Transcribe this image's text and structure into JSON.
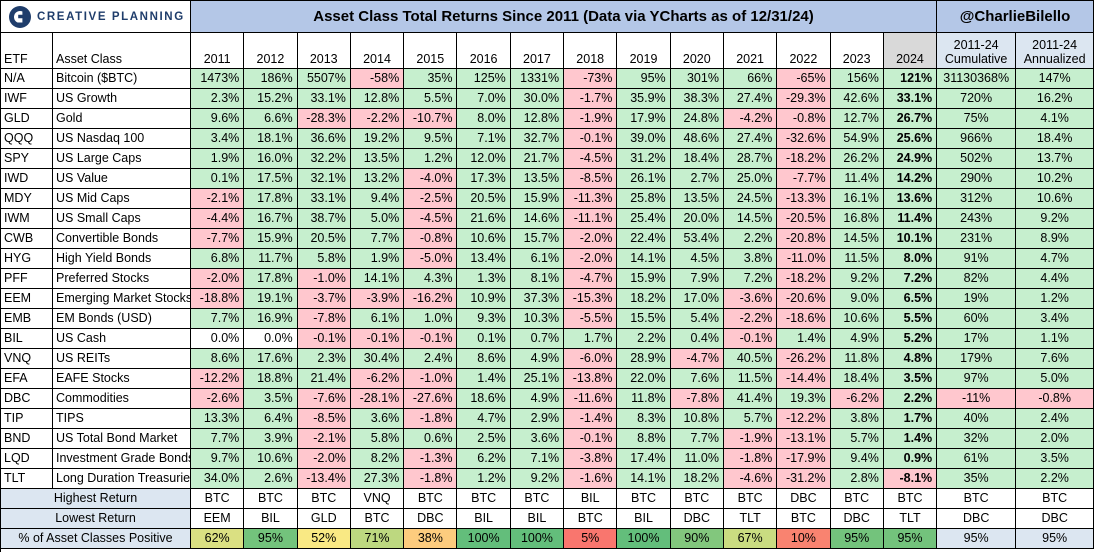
{
  "header": {
    "logo_text": "CREATIVE PLANNING",
    "title": "Asset Class Total Returns Since 2011 (Data via YCharts as of 12/31/24)",
    "handle": "@CharlieBilello"
  },
  "columns": {
    "etf": "ETF",
    "asset_class": "Asset Class",
    "years": [
      "2011",
      "2012",
      "2013",
      "2014",
      "2015",
      "2016",
      "2017",
      "2018",
      "2019",
      "2020",
      "2021",
      "2022",
      "2023",
      "2024"
    ],
    "cumulative": [
      "2011-24",
      "Cumulative"
    ],
    "annualized": [
      "2011-24",
      "Annualized"
    ]
  },
  "chart_data": {
    "type": "table",
    "title": "Asset Class Total Returns Since 2011 (Data via YCharts as of 12/31/24)",
    "rows": [
      {
        "etf": "N/A",
        "name": "Bitcoin ($BTC)",
        "values": [
          "1473%",
          "186%",
          "5507%",
          "-58%",
          "35%",
          "125%",
          "1331%",
          "-73%",
          "95%",
          "301%",
          "66%",
          "-65%",
          "156%",
          "121%"
        ],
        "cumulative": "31130368%",
        "annualized": "147%"
      },
      {
        "etf": "IWF",
        "name": "US Growth",
        "values": [
          "2.3%",
          "15.2%",
          "33.1%",
          "12.8%",
          "5.5%",
          "7.0%",
          "30.0%",
          "-1.7%",
          "35.9%",
          "38.3%",
          "27.4%",
          "-29.3%",
          "42.6%",
          "33.1%"
        ],
        "cumulative": "720%",
        "annualized": "16.2%"
      },
      {
        "etf": "GLD",
        "name": "Gold",
        "values": [
          "9.6%",
          "6.6%",
          "-28.3%",
          "-2.2%",
          "-10.7%",
          "8.0%",
          "12.8%",
          "-1.9%",
          "17.9%",
          "24.8%",
          "-4.2%",
          "-0.8%",
          "12.7%",
          "26.7%"
        ],
        "cumulative": "75%",
        "annualized": "4.1%"
      },
      {
        "etf": "QQQ",
        "name": "US Nasdaq 100",
        "values": [
          "3.4%",
          "18.1%",
          "36.6%",
          "19.2%",
          "9.5%",
          "7.1%",
          "32.7%",
          "-0.1%",
          "39.0%",
          "48.6%",
          "27.4%",
          "-32.6%",
          "54.9%",
          "25.6%"
        ],
        "cumulative": "966%",
        "annualized": "18.4%"
      },
      {
        "etf": "SPY",
        "name": "US Large Caps",
        "values": [
          "1.9%",
          "16.0%",
          "32.2%",
          "13.5%",
          "1.2%",
          "12.0%",
          "21.7%",
          "-4.5%",
          "31.2%",
          "18.4%",
          "28.7%",
          "-18.2%",
          "26.2%",
          "24.9%"
        ],
        "cumulative": "502%",
        "annualized": "13.7%"
      },
      {
        "etf": "IWD",
        "name": "US Value",
        "values": [
          "0.1%",
          "17.5%",
          "32.1%",
          "13.2%",
          "-4.0%",
          "17.3%",
          "13.5%",
          "-8.5%",
          "26.1%",
          "2.7%",
          "25.0%",
          "-7.7%",
          "11.4%",
          "14.2%"
        ],
        "cumulative": "290%",
        "annualized": "10.2%"
      },
      {
        "etf": "MDY",
        "name": "US Mid Caps",
        "values": [
          "-2.1%",
          "17.8%",
          "33.1%",
          "9.4%",
          "-2.5%",
          "20.5%",
          "15.9%",
          "-11.3%",
          "25.8%",
          "13.5%",
          "24.5%",
          "-13.3%",
          "16.1%",
          "13.6%"
        ],
        "cumulative": "312%",
        "annualized": "10.6%"
      },
      {
        "etf": "IWM",
        "name": "US Small Caps",
        "values": [
          "-4.4%",
          "16.7%",
          "38.7%",
          "5.0%",
          "-4.5%",
          "21.6%",
          "14.6%",
          "-11.1%",
          "25.4%",
          "20.0%",
          "14.5%",
          "-20.5%",
          "16.8%",
          "11.4%"
        ],
        "cumulative": "243%",
        "annualized": "9.2%"
      },
      {
        "etf": "CWB",
        "name": "Convertible Bonds",
        "values": [
          "-7.7%",
          "15.9%",
          "20.5%",
          "7.7%",
          "-0.8%",
          "10.6%",
          "15.7%",
          "-2.0%",
          "22.4%",
          "53.4%",
          "2.2%",
          "-20.8%",
          "14.5%",
          "10.1%"
        ],
        "cumulative": "231%",
        "annualized": "8.9%"
      },
      {
        "etf": "HYG",
        "name": "High Yield Bonds",
        "values": [
          "6.8%",
          "11.7%",
          "5.8%",
          "1.9%",
          "-5.0%",
          "13.4%",
          "6.1%",
          "-2.0%",
          "14.1%",
          "4.5%",
          "3.8%",
          "-11.0%",
          "11.5%",
          "8.0%"
        ],
        "cumulative": "91%",
        "annualized": "4.7%"
      },
      {
        "etf": "PFF",
        "name": "Preferred Stocks",
        "values": [
          "-2.0%",
          "17.8%",
          "-1.0%",
          "14.1%",
          "4.3%",
          "1.3%",
          "8.1%",
          "-4.7%",
          "15.9%",
          "7.9%",
          "7.2%",
          "-18.2%",
          "9.2%",
          "7.2%"
        ],
        "cumulative": "82%",
        "annualized": "4.4%"
      },
      {
        "etf": "EEM",
        "name": "Emerging Market Stocks",
        "values": [
          "-18.8%",
          "19.1%",
          "-3.7%",
          "-3.9%",
          "-16.2%",
          "10.9%",
          "37.3%",
          "-15.3%",
          "18.2%",
          "17.0%",
          "-3.6%",
          "-20.6%",
          "9.0%",
          "6.5%"
        ],
        "cumulative": "19%",
        "annualized": "1.2%"
      },
      {
        "etf": "EMB",
        "name": "EM Bonds (USD)",
        "values": [
          "7.7%",
          "16.9%",
          "-7.8%",
          "6.1%",
          "1.0%",
          "9.3%",
          "10.3%",
          "-5.5%",
          "15.5%",
          "5.4%",
          "-2.2%",
          "-18.6%",
          "10.6%",
          "5.5%"
        ],
        "cumulative": "60%",
        "annualized": "3.4%"
      },
      {
        "etf": "BIL",
        "name": "US Cash",
        "values": [
          "0.0%",
          "0.0%",
          "-0.1%",
          "-0.1%",
          "-0.1%",
          "0.1%",
          "0.7%",
          "1.7%",
          "2.2%",
          "0.4%",
          "-0.1%",
          "1.4%",
          "4.9%",
          "5.2%"
        ],
        "cumulative": "17%",
        "annualized": "1.1%"
      },
      {
        "etf": "VNQ",
        "name": "US REITs",
        "values": [
          "8.6%",
          "17.6%",
          "2.3%",
          "30.4%",
          "2.4%",
          "8.6%",
          "4.9%",
          "-6.0%",
          "28.9%",
          "-4.7%",
          "40.5%",
          "-26.2%",
          "11.8%",
          "4.8%"
        ],
        "cumulative": "179%",
        "annualized": "7.6%"
      },
      {
        "etf": "EFA",
        "name": "EAFE Stocks",
        "values": [
          "-12.2%",
          "18.8%",
          "21.4%",
          "-6.2%",
          "-1.0%",
          "1.4%",
          "25.1%",
          "-13.8%",
          "22.0%",
          "7.6%",
          "11.5%",
          "-14.4%",
          "18.4%",
          "3.5%"
        ],
        "cumulative": "97%",
        "annualized": "5.0%"
      },
      {
        "etf": "DBC",
        "name": "Commodities",
        "values": [
          "-2.6%",
          "3.5%",
          "-7.6%",
          "-28.1%",
          "-27.6%",
          "18.6%",
          "4.9%",
          "-11.6%",
          "11.8%",
          "-7.8%",
          "41.4%",
          "19.3%",
          "-6.2%",
          "2.2%"
        ],
        "cumulative": "-11%",
        "annualized": "-0.8%"
      },
      {
        "etf": "TIP",
        "name": "TIPS",
        "values": [
          "13.3%",
          "6.4%",
          "-8.5%",
          "3.6%",
          "-1.8%",
          "4.7%",
          "2.9%",
          "-1.4%",
          "8.3%",
          "10.8%",
          "5.7%",
          "-12.2%",
          "3.8%",
          "1.7%"
        ],
        "cumulative": "40%",
        "annualized": "2.4%"
      },
      {
        "etf": "BND",
        "name": "US Total Bond Market",
        "values": [
          "7.7%",
          "3.9%",
          "-2.1%",
          "5.8%",
          "0.6%",
          "2.5%",
          "3.6%",
          "-0.1%",
          "8.8%",
          "7.7%",
          "-1.9%",
          "-13.1%",
          "5.7%",
          "1.4%"
        ],
        "cumulative": "32%",
        "annualized": "2.0%"
      },
      {
        "etf": "LQD",
        "name": "Investment Grade Bonds",
        "values": [
          "9.7%",
          "10.6%",
          "-2.0%",
          "8.2%",
          "-1.3%",
          "6.2%",
          "7.1%",
          "-3.8%",
          "17.4%",
          "11.0%",
          "-1.8%",
          "-17.9%",
          "9.4%",
          "0.9%"
        ],
        "cumulative": "61%",
        "annualized": "3.5%"
      },
      {
        "etf": "TLT",
        "name": "Long Duration Treasuries",
        "values": [
          "34.0%",
          "2.6%",
          "-13.4%",
          "27.3%",
          "-1.8%",
          "1.2%",
          "9.2%",
          "-1.6%",
          "14.1%",
          "18.2%",
          "-4.6%",
          "-31.2%",
          "2.8%",
          "-8.1%"
        ],
        "cumulative": "35%",
        "annualized": "2.2%"
      }
    ],
    "summary": [
      {
        "label": "Highest Return",
        "values": [
          "BTC",
          "BTC",
          "BTC",
          "VNQ",
          "BTC",
          "BTC",
          "BTC",
          "BIL",
          "BTC",
          "BTC",
          "BTC",
          "DBC",
          "BTC",
          "BTC"
        ],
        "cumulative": "BTC",
        "annualized": "BTC"
      },
      {
        "label": "Lowest Return",
        "values": [
          "EEM",
          "BIL",
          "GLD",
          "BTC",
          "DBC",
          "BIL",
          "BIL",
          "BTC",
          "BIL",
          "DBC",
          "TLT",
          "BTC",
          "DBC",
          "TLT"
        ],
        "cumulative": "DBC",
        "annualized": "DBC"
      },
      {
        "label": "% of Asset Classes Positive",
        "values": [
          "62%",
          "95%",
          "52%",
          "71%",
          "38%",
          "100%",
          "100%",
          "5%",
          "100%",
          "90%",
          "67%",
          "10%",
          "95%",
          "95%"
        ],
        "cumulative": "95%",
        "annualized": "95%"
      }
    ]
  },
  "colors": {
    "positive": "#c6efce",
    "negative": "#ffc7ce",
    "header_blue": "#b4c7e7",
    "label_blue": "#dce6f1",
    "gray": "#d9d9d9",
    "pct_scale_low": "#f8696b",
    "pct_scale_mid": "#ffeb84",
    "pct_scale_high": "#63be7b"
  }
}
